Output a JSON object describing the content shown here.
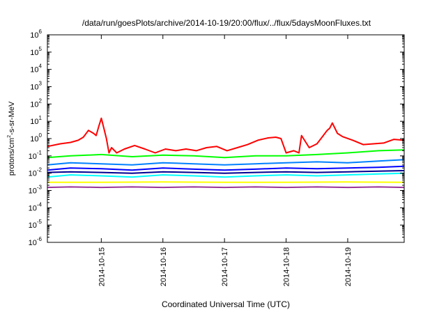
{
  "chart_data": {
    "type": "line",
    "title": "/data/run/goesPlots/archive/2014-10-19/20:00/flux/../flux/5daysMoonFluxes.txt",
    "xlabel": "Coordinated Universal Time (UTC)",
    "ylabel": {
      "main": "protons/cm",
      "sup": "2",
      "rest": "-s-sr-MeV"
    },
    "y_scale": "log",
    "ylim": [
      1e-06,
      1000000.0
    ],
    "y_ticks": [
      {
        "base": "10",
        "exp": "-6"
      },
      {
        "base": "10",
        "exp": "-5"
      },
      {
        "base": "10",
        "exp": "-4"
      },
      {
        "base": "10",
        "exp": "-3"
      },
      {
        "base": "10",
        "exp": "-2"
      },
      {
        "base": "10",
        "exp": "-1"
      },
      {
        "base": "10",
        "exp": "0"
      },
      {
        "base": "10",
        "exp": "1"
      },
      {
        "base": "10",
        "exp": "2"
      },
      {
        "base": "10",
        "exp": "3"
      },
      {
        "base": "10",
        "exp": "4"
      },
      {
        "base": "10",
        "exp": "5"
      },
      {
        "base": "10",
        "exp": "6"
      }
    ],
    "xlim": [
      "2014-10-14T03:00",
      "2014-10-19T22:00"
    ],
    "x_ticks": [
      "2014-10-15",
      "2014-10-16",
      "2014-10-17",
      "2014-10-18",
      "2014-10-19"
    ],
    "grid": false,
    "legend": "none",
    "series": [
      {
        "color": "#ff0000",
        "x": [
          "2014-10-14T03:00",
          "2014-10-14T08:00",
          "2014-10-14T12:00",
          "2014-10-14T15:00",
          "2014-10-14T17:00",
          "2014-10-14T19:00",
          "2014-10-14T21:00",
          "2014-10-14T22:00",
          "2014-10-14T23:00",
          "2014-10-15T00:00",
          "2014-10-15T01:00",
          "2014-10-15T02:00",
          "2014-10-15T03:00",
          "2014-10-15T04:00",
          "2014-10-15T06:00",
          "2014-10-15T09:00",
          "2014-10-15T13:00",
          "2014-10-15T17:00",
          "2014-10-15T21:00",
          "2014-10-16T01:00",
          "2014-10-16T05:00",
          "2014-10-16T09:00",
          "2014-10-16T13:00",
          "2014-10-16T17:00",
          "2014-10-16T21:00",
          "2014-10-17T01:00",
          "2014-10-17T05:00",
          "2014-10-17T09:00",
          "2014-10-17T13:00",
          "2014-10-17T17:00",
          "2014-10-17T20:00",
          "2014-10-17T22:00",
          "2014-10-18T00:00",
          "2014-10-18T03:00",
          "2014-10-18T05:00",
          "2014-10-18T06:00",
          "2014-10-18T09:00",
          "2014-10-18T12:00",
          "2014-10-18T14:00",
          "2014-10-18T16:00",
          "2014-10-18T17:00",
          "2014-10-18T18:00",
          "2014-10-18T20:00",
          "2014-10-18T22:00",
          "2014-10-19T02:00",
          "2014-10-19T06:00",
          "2014-10-19T10:00",
          "2014-10-19T14:00",
          "2014-10-19T18:00",
          "2014-10-19T22:00"
        ],
        "y": [
          0.35,
          0.5,
          0.6,
          0.8,
          1.2,
          3,
          2,
          1.5,
          5,
          15,
          4,
          1,
          0.15,
          0.3,
          0.15,
          0.25,
          0.4,
          0.25,
          0.15,
          0.25,
          0.2,
          0.25,
          0.2,
          0.3,
          0.35,
          0.2,
          0.3,
          0.45,
          0.8,
          1.1,
          1.2,
          1.0,
          0.15,
          0.2,
          0.15,
          1.5,
          0.3,
          0.5,
          1.2,
          3,
          4,
          8,
          2,
          1.3,
          0.8,
          0.45,
          0.5,
          0.55,
          0.9,
          0.8
        ]
      },
      {
        "color": "#00ff00",
        "x": [
          "2014-10-14T03:00",
          "2014-10-14T12:00",
          "2014-10-15T00:00",
          "2014-10-15T12:00",
          "2014-10-16T00:00",
          "2014-10-16T12:00",
          "2014-10-17T00:00",
          "2014-10-17T12:00",
          "2014-10-18T00:00",
          "2014-10-18T12:00",
          "2014-10-19T00:00",
          "2014-10-19T12:00",
          "2014-10-19T22:00"
        ],
        "y": [
          0.08,
          0.1,
          0.12,
          0.09,
          0.11,
          0.1,
          0.08,
          0.1,
          0.1,
          0.12,
          0.15,
          0.2,
          0.22
        ]
      },
      {
        "color": "#00ffff",
        "x": [
          "2014-10-14T03:00",
          "2014-10-14T12:00",
          "2014-10-15T00:00",
          "2014-10-15T12:00",
          "2014-10-16T00:00",
          "2014-10-16T12:00",
          "2014-10-17T00:00",
          "2014-10-17T12:00",
          "2014-10-18T00:00",
          "2014-10-18T12:00",
          "2014-10-19T00:00",
          "2014-10-19T12:00",
          "2014-10-19T22:00"
        ],
        "y": [
          0.006,
          0.008,
          0.007,
          0.006,
          0.008,
          0.007,
          0.006,
          0.007,
          0.008,
          0.007,
          0.008,
          0.009,
          0.01
        ]
      },
      {
        "color": "#0080ff",
        "x": [
          "2014-10-14T03:00",
          "2014-10-14T12:00",
          "2014-10-15T00:00",
          "2014-10-15T12:00",
          "2014-10-16T00:00",
          "2014-10-16T12:00",
          "2014-10-17T00:00",
          "2014-10-17T12:00",
          "2014-10-18T00:00",
          "2014-10-18T12:00",
          "2014-10-19T00:00",
          "2014-10-19T12:00",
          "2014-10-19T22:00"
        ],
        "y": [
          0.03,
          0.04,
          0.035,
          0.03,
          0.04,
          0.035,
          0.03,
          0.035,
          0.04,
          0.045,
          0.04,
          0.05,
          0.06
        ]
      },
      {
        "color": "#0000ff",
        "x": [
          "2014-10-14T03:00",
          "2014-10-14T12:00",
          "2014-10-15T00:00",
          "2014-10-15T12:00",
          "2014-10-16T00:00",
          "2014-10-16T12:00",
          "2014-10-17T00:00",
          "2014-10-17T12:00",
          "2014-10-18T00:00",
          "2014-10-18T12:00",
          "2014-10-19T00:00",
          "2014-10-19T12:00",
          "2014-10-19T22:00"
        ],
        "y": [
          0.015,
          0.02,
          0.018,
          0.015,
          0.02,
          0.017,
          0.015,
          0.017,
          0.02,
          0.018,
          0.02,
          0.022,
          0.025
        ]
      },
      {
        "color": "#000090",
        "x": [
          "2014-10-14T03:00",
          "2014-10-14T12:00",
          "2014-10-15T00:00",
          "2014-10-15T12:00",
          "2014-10-16T00:00",
          "2014-10-16T12:00",
          "2014-10-17T00:00",
          "2014-10-17T12:00",
          "2014-10-18T00:00",
          "2014-10-18T12:00",
          "2014-10-19T00:00",
          "2014-10-19T12:00",
          "2014-10-19T22:00"
        ],
        "y": [
          0.011,
          0.012,
          0.011,
          0.01,
          0.012,
          0.011,
          0.01,
          0.011,
          0.012,
          0.011,
          0.012,
          0.013,
          0.014
        ]
      },
      {
        "color": "#ffff00",
        "x": [
          "2014-10-14T03:00",
          "2014-10-15T00:00",
          "2014-10-16T00:00",
          "2014-10-17T00:00",
          "2014-10-18T00:00",
          "2014-10-19T00:00",
          "2014-10-19T22:00"
        ],
        "y": [
          0.003,
          0.003,
          0.0031,
          0.003,
          0.003,
          0.0031,
          0.003
        ]
      },
      {
        "color": "#993399",
        "x": [
          "2014-10-14T03:00",
          "2014-10-14T12:00",
          "2014-10-15T00:00",
          "2014-10-15T12:00",
          "2014-10-16T00:00",
          "2014-10-16T12:00",
          "2014-10-17T00:00",
          "2014-10-17T12:00",
          "2014-10-18T00:00",
          "2014-10-18T12:00",
          "2014-10-19T00:00",
          "2014-10-19T12:00",
          "2014-10-19T22:00"
        ],
        "y": [
          0.0015,
          0.0016,
          0.0015,
          0.0016,
          0.0015,
          0.0016,
          0.0015,
          0.0016,
          0.0015,
          0.0016,
          0.0015,
          0.0016,
          0.0015
        ]
      }
    ]
  }
}
